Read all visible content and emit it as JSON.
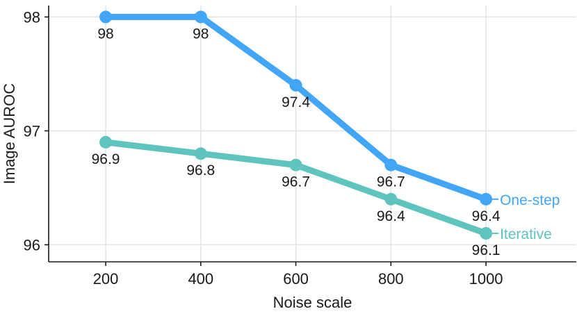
{
  "chart_data": {
    "type": "line",
    "title": "",
    "xlabel": "Noise scale",
    "ylabel": "Image AUROC",
    "x": [
      200,
      400,
      600,
      800,
      1000
    ],
    "xlim": [
      80,
      1190
    ],
    "ylim": [
      95.85,
      98.1
    ],
    "xticks": [
      200,
      400,
      600,
      800,
      1000
    ],
    "yticks": [
      96,
      97,
      98
    ],
    "xtick_labels": [
      "200",
      "400",
      "600",
      "800",
      "1000"
    ],
    "ytick_labels": [
      "96",
      "97",
      "98"
    ],
    "grid": true,
    "legend": "direct labels at line ends (right)",
    "series": [
      {
        "name": "One-step",
        "color": "#42A5F5",
        "values": [
          98,
          98,
          97.4,
          96.7,
          96.4
        ],
        "labels": [
          "98",
          "98",
          "97.4",
          "96.7",
          "96.4"
        ]
      },
      {
        "name": "Iterative",
        "color": "#5FC3BE",
        "values": [
          96.9,
          96.8,
          96.7,
          96.4,
          96.1
        ],
        "labels": [
          "96.9",
          "96.8",
          "96.7",
          "96.4",
          "96.1"
        ]
      }
    ]
  }
}
